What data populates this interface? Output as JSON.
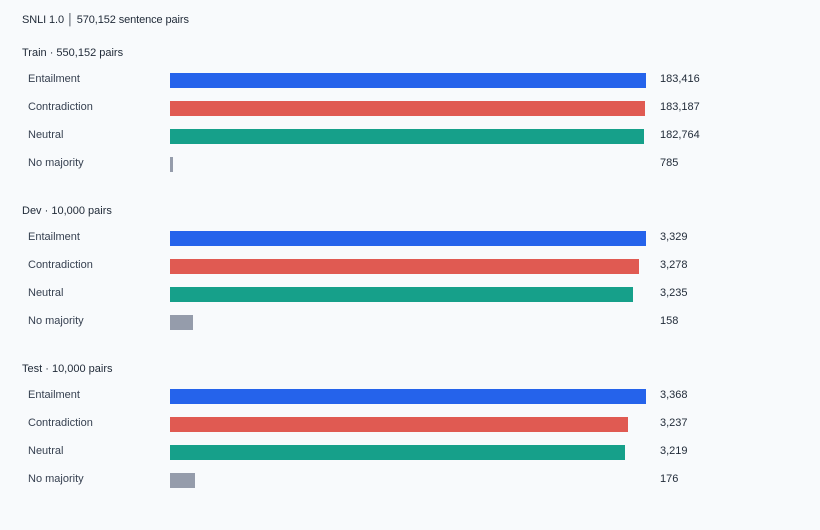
{
  "title": "SNLI 1.0 │ 570,152 sentence pairs",
  "colors": {
    "Entailment": "#2563eb",
    "Contradiction": "#e05a52",
    "Neutral": "#16a08a",
    "No majority": "#959cab"
  },
  "chart_data": {
    "type": "bar",
    "orientation": "horizontal",
    "title": "SNLI 1.0 │ 570,152 sentence pairs",
    "legend": "none",
    "grid": false,
    "panels": [
      {
        "title": "Train · 550,152 pairs",
        "rows": [
          {
            "label": "Entailment",
            "value": 183416,
            "value_label": "183,416"
          },
          {
            "label": "Contradiction",
            "value": 183187,
            "value_label": "183,187"
          },
          {
            "label": "Neutral",
            "value": 182764,
            "value_label": "182,764"
          },
          {
            "label": "No majority",
            "value": 785,
            "value_label": "785"
          }
        ]
      },
      {
        "title": "Dev · 10,000 pairs",
        "rows": [
          {
            "label": "Entailment",
            "value": 3329,
            "value_label": "3,329"
          },
          {
            "label": "Contradiction",
            "value": 3278,
            "value_label": "3,278"
          },
          {
            "label": "Neutral",
            "value": 3235,
            "value_label": "3,235"
          },
          {
            "label": "No majority",
            "value": 158,
            "value_label": "158"
          }
        ]
      },
      {
        "title": "Test · 10,000 pairs",
        "rows": [
          {
            "label": "Entailment",
            "value": 3368,
            "value_label": "3,368"
          },
          {
            "label": "Contradiction",
            "value": 3237,
            "value_label": "3,237"
          },
          {
            "label": "Neutral",
            "value": 3219,
            "value_label": "3,219"
          },
          {
            "label": "No majority",
            "value": 176,
            "value_label": "176"
          }
        ]
      }
    ]
  }
}
